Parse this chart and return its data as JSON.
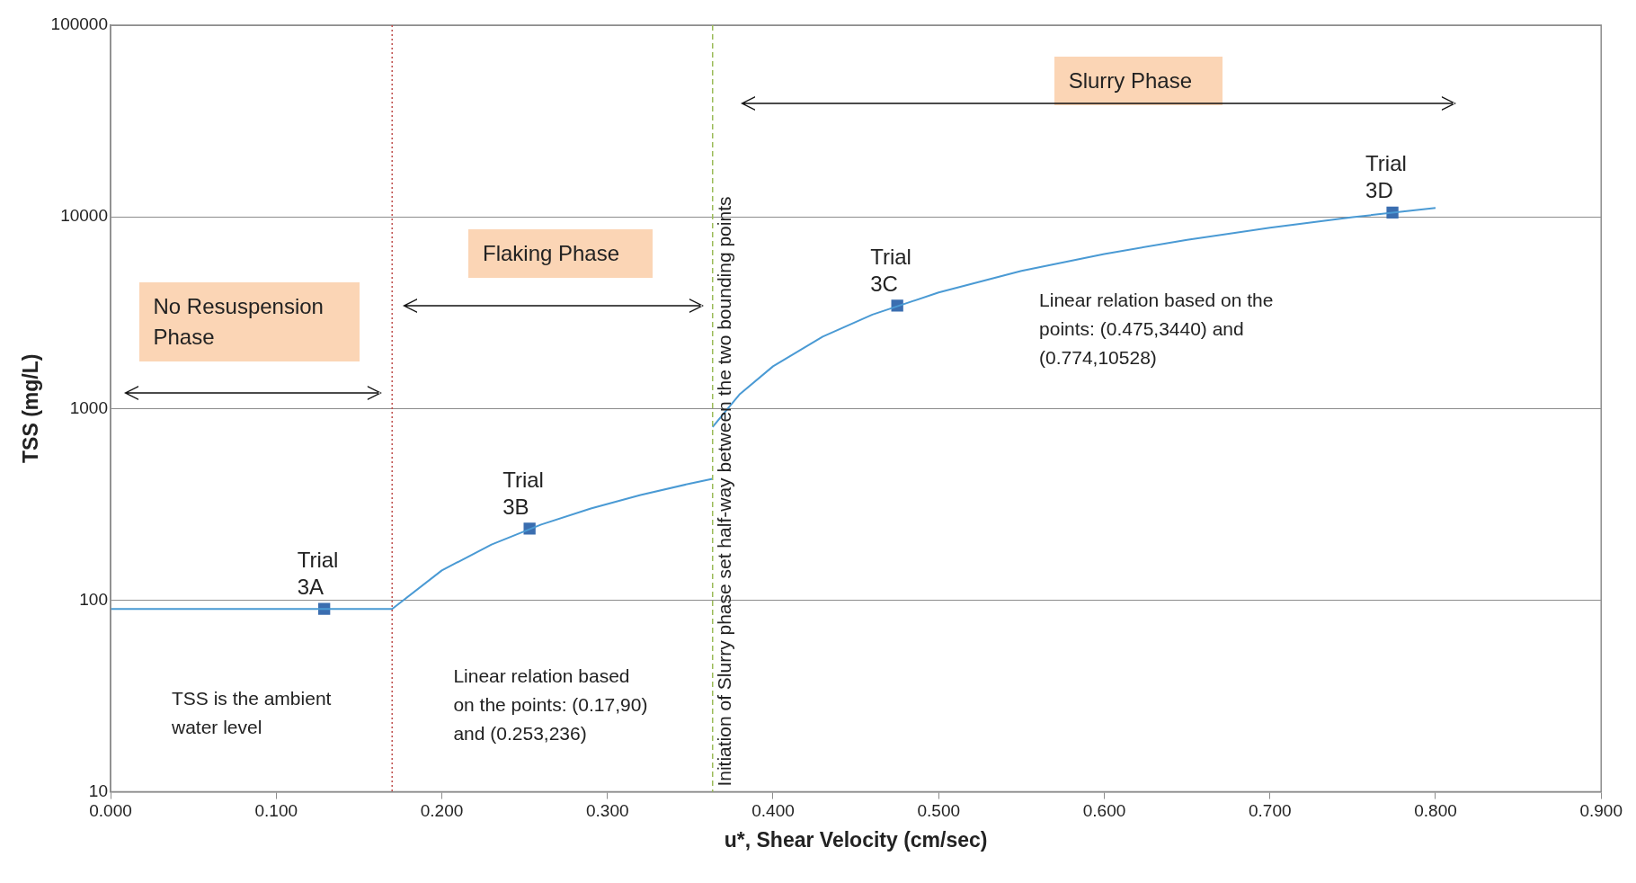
{
  "chart_data": {
    "type": "line",
    "xlabel": "u*, Shear Velocity (cm/sec)",
    "ylabel": "TSS (mg/L)",
    "log": "y",
    "grid": "y",
    "legend": false,
    "xlim": [
      0,
      0.9
    ],
    "xticks": [
      {
        "value": 0,
        "label": "0.000"
      },
      {
        "value": 0.1,
        "label": "0.100"
      },
      {
        "value": 0.2,
        "label": "0.200"
      },
      {
        "value": 0.3,
        "label": "0.300"
      },
      {
        "value": 0.4,
        "label": "0.400"
      },
      {
        "value": 0.5,
        "label": "0.500"
      },
      {
        "value": 0.6,
        "label": "0.600"
      },
      {
        "value": 0.7,
        "label": "0.700"
      },
      {
        "value": 0.8,
        "label": "0.800"
      },
      {
        "value": 0.9,
        "label": "0.900"
      }
    ],
    "ylim": [
      10,
      100000
    ],
    "yticks": [
      10,
      100,
      1000,
      10000,
      100000
    ],
    "series": [
      {
        "color": "#4a9ad4",
        "marker": "none",
        "x": [
          0,
          0.17,
          0.2,
          0.23,
          0.26,
          0.29,
          0.32,
          0.35,
          0.3635
        ],
        "values": [
          90,
          90,
          143,
          195,
          248,
          301,
          354,
          406,
          430
        ]
      },
      {
        "color": "#4a9ad4",
        "marker": "none",
        "x": [
          0.3635,
          0.38,
          0.4,
          0.43,
          0.46,
          0.5,
          0.55,
          0.6,
          0.65,
          0.7,
          0.75,
          0.8
        ],
        "values": [
          800,
          1190,
          1660,
          2370,
          3090,
          4030,
          5220,
          6400,
          7590,
          8770,
          9960,
          11140
        ]
      },
      {
        "type": "scatter",
        "color": "#3b6eb0",
        "marker": "square",
        "x": [
          0.129,
          0.253,
          0.475,
          0.774
        ],
        "values": [
          90,
          236,
          3440,
          10528
        ]
      }
    ],
    "ref_lines": [
      {
        "axis": "x",
        "value": 0.17,
        "color": "#c0504d",
        "line_style": "dotted"
      },
      {
        "axis": "x",
        "value": 0.3635,
        "color": "#9bbb59",
        "line_style": "dashed",
        "label": "Initiation of Slurry phase set half-way between the two bounding points"
      }
    ],
    "annotations": [
      {
        "text": "Trial 3A",
        "x": 0.129,
        "y": 90
      },
      {
        "text": "Trial 3B",
        "x": 0.253,
        "y": 236
      },
      {
        "text": "Trial 3C",
        "x": 0.475,
        "y": 3440
      },
      {
        "text": "Trial 3D",
        "x": 0.774,
        "y": 10528
      },
      "No Resuspension Phase",
      "Flaking Phase",
      "Slurry Phase",
      "TSS is the ambient water level",
      "Linear relation based on the points: (0.17,90) and (0.253,236)",
      "Linear relation based on the points: (0.475,3440) and (0.774,10528)"
    ]
  }
}
